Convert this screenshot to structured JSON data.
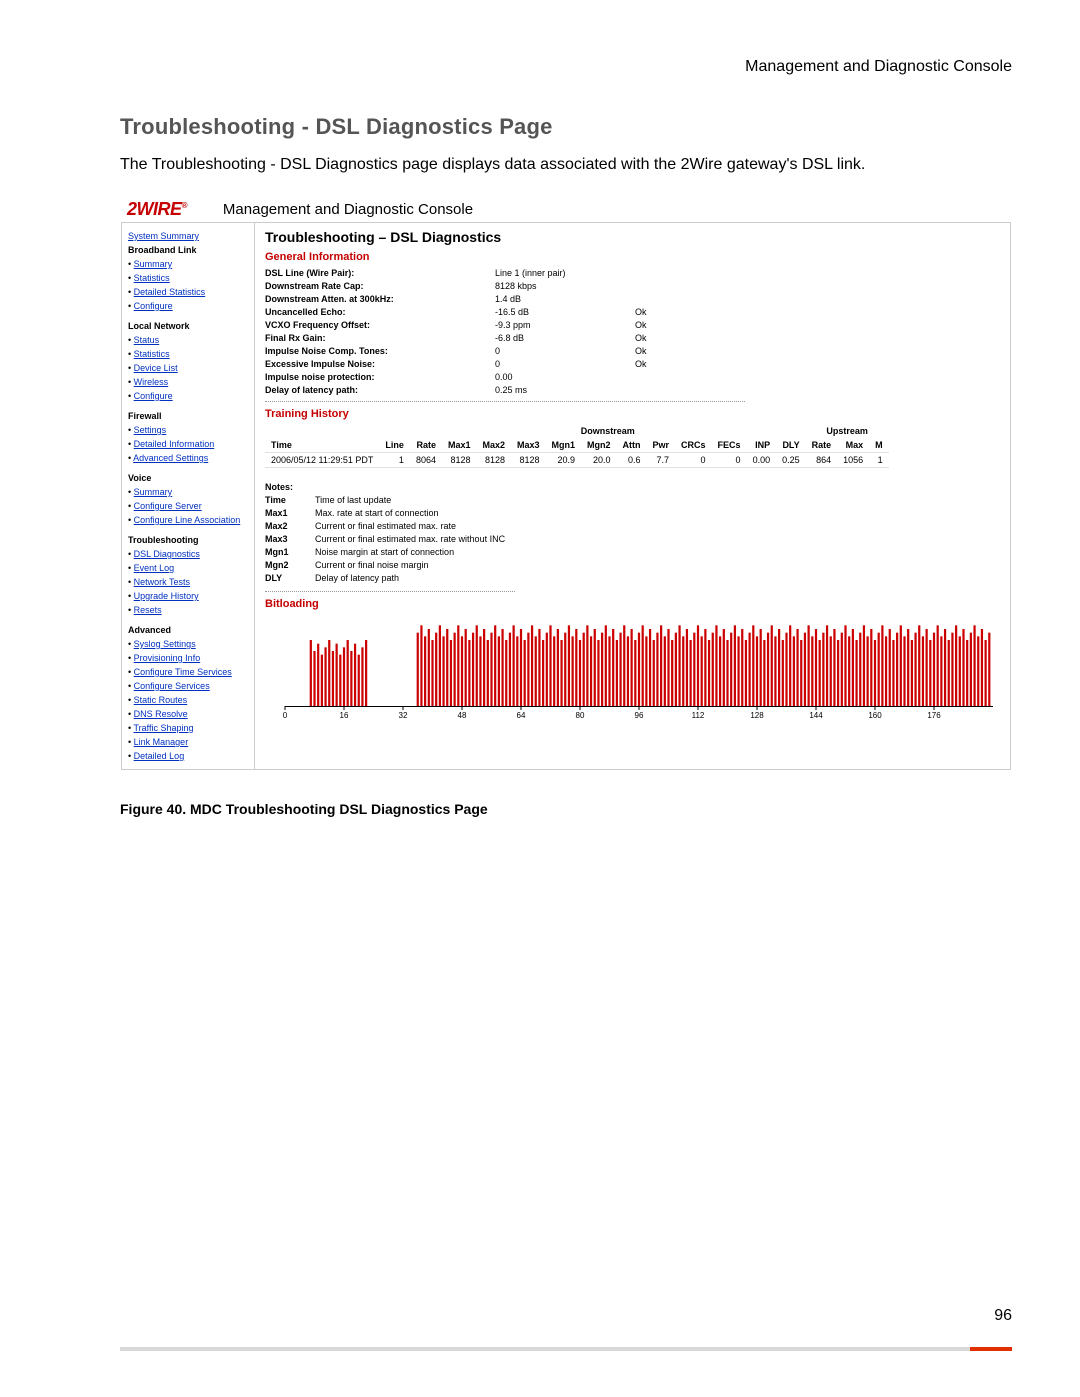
{
  "doc": {
    "header_right": "Management and Diagnostic Console",
    "section_title": "Troubleshooting - DSL Diagnostics Page",
    "intro": "The Troubleshooting - DSL Diagnostics page displays data associated with the 2Wire gateway's DSL link.",
    "figure_caption": "Figure 40. MDC Troubleshooting DSL Diagnostics Page",
    "page_number": "96"
  },
  "colors": {
    "brand_red": "#c40000",
    "link_blue": "#0030c0",
    "text_black": "#000000",
    "border_gray": "#cccccc",
    "section_title_gray": "#555555",
    "bitload_red": "#cc0000",
    "bitload_axis": "#000000",
    "footer_gray": "#d8d8d8",
    "footer_red": "#e03000"
  },
  "screenshot": {
    "logo_label": "2WIRE",
    "mdc_title": "Management and Diagnostic Console",
    "content_title": "Troubleshooting – DSL Diagnostics",
    "section_general": "General Information",
    "section_training": "Training History",
    "section_bitloading": "Bitloading",
    "notes_label": "Notes:"
  },
  "sidebar": {
    "top_link": "System Summary",
    "sections": [
      {
        "title": "Broadband Link",
        "items": [
          "Summary",
          "Statistics",
          "Detailed Statistics",
          "Configure"
        ]
      },
      {
        "title": "Local Network",
        "items": [
          "Status",
          "Statistics",
          "Device List",
          "Wireless",
          "Configure"
        ]
      },
      {
        "title": "Firewall",
        "items": [
          "Settings",
          "Detailed Information",
          "Advanced Settings"
        ]
      },
      {
        "title": "Voice",
        "items": [
          "Summary",
          "Configure Server",
          "Configure Line Association"
        ]
      },
      {
        "title": "Troubleshooting",
        "items": [
          "DSL Diagnostics",
          "Event Log",
          "Network Tests",
          "Upgrade History",
          "Resets"
        ]
      },
      {
        "title": "Advanced",
        "items": [
          "Syslog Settings",
          "Provisioning Info",
          "Configure Time Services",
          "Configure Services",
          "Static Routes",
          "DNS Resolve",
          "Traffic Shaping",
          "Link Manager",
          "Detailed Log"
        ]
      }
    ]
  },
  "general_info": [
    {
      "label": "DSL Line (Wire Pair):",
      "value": "Line 1 (inner pair)",
      "status": ""
    },
    {
      "label": "Downstream Rate Cap:",
      "value": "8128 kbps",
      "status": ""
    },
    {
      "label": "Downstream Atten. at 300kHz:",
      "value": "1.4 dB",
      "status": ""
    },
    {
      "label": "Uncancelled Echo:",
      "value": "-16.5 dB",
      "status": "Ok"
    },
    {
      "label": "VCXO Frequency Offset:",
      "value": "-9.3 ppm",
      "status": "Ok"
    },
    {
      "label": "Final Rx Gain:",
      "value": "-6.8 dB",
      "status": "Ok"
    },
    {
      "label": "Impulse Noise Comp. Tones:",
      "value": "0",
      "status": "Ok"
    },
    {
      "label": "Excessive Impulse Noise:",
      "value": "0",
      "status": "Ok"
    },
    {
      "label": "Impulse noise protection:",
      "value": "0.00",
      "status": ""
    },
    {
      "label": "Delay of latency path:",
      "value": "0.25 ms",
      "status": ""
    }
  ],
  "training_history": {
    "group_down": "Downstream",
    "group_up": "Upstream",
    "columns_left": [
      "Time",
      "Line"
    ],
    "columns_down": [
      "Rate",
      "Max1",
      "Max2",
      "Max3",
      "Mgn1",
      "Mgn2",
      "Attn",
      "Pwr",
      "CRCs",
      "FECs",
      "INP",
      "DLY"
    ],
    "columns_up": [
      "Rate",
      "Max",
      "M"
    ],
    "row": {
      "time": "2006/05/12 11:29:51 PDT",
      "line": "1",
      "down": [
        "8064",
        "8128",
        "8128",
        "8128",
        "20.9",
        "20.0",
        "0.6",
        "7.7",
        "0",
        "0",
        "0.00",
        "0.25"
      ],
      "up": [
        "864",
        "1056",
        "1"
      ]
    }
  },
  "notes": [
    {
      "k": "Time",
      "v": "Time of last update"
    },
    {
      "k": "Max1",
      "v": "Max. rate at start of connection"
    },
    {
      "k": "Max2",
      "v": "Current or final estimated max. rate"
    },
    {
      "k": "Max3",
      "v": "Current or final estimated max. rate without INC"
    },
    {
      "k": "Mgn1",
      "v": "Noise margin at start of connection"
    },
    {
      "k": "Mgn2",
      "v": "Current or final noise margin"
    },
    {
      "k": "DLY",
      "v": "Delay of latency path"
    }
  ],
  "bitload_chart": {
    "type": "bar",
    "x_start": 0,
    "x_end": 192,
    "x_ticks": [
      0,
      16,
      32,
      48,
      64,
      80,
      96,
      112,
      128,
      144,
      160,
      176
    ],
    "ymax": 12,
    "left_block": {
      "from": 7,
      "to": 22,
      "height": 8
    },
    "right_block": {
      "from": 36,
      "to": 192,
      "height": 10
    },
    "gap": {
      "from": 23,
      "to": 35
    },
    "bar_color": "#cc0000",
    "axis_color": "#000000",
    "label_fontsize": 8
  }
}
